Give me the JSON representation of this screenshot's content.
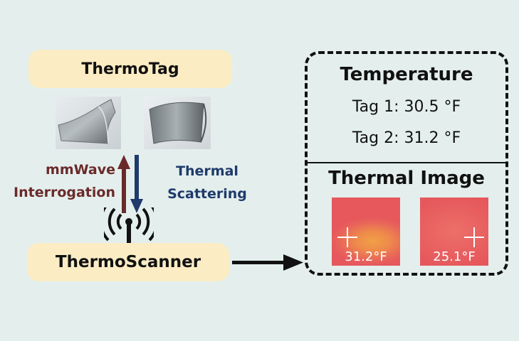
{
  "thermotag": {
    "label": "ThermoTag"
  },
  "thermoscanner": {
    "label": "ThermoScanner"
  },
  "uplink": {
    "line1": "mmWave",
    "line2": "Interrogation",
    "color": "#6b2a2a"
  },
  "downlink": {
    "line1": "Thermal",
    "line2": "Scattering",
    "color": "#1f3a6b"
  },
  "panel": {
    "title": "Temperature",
    "readings": [
      {
        "label": "Tag 1:  30.5 °F"
      },
      {
        "label": "Tag 2:  31.2 °F"
      }
    ],
    "thermal_title": "Thermal Image",
    "thermal_images": [
      {
        "temp": "31.2°F"
      },
      {
        "temp": "25.1°F"
      }
    ]
  },
  "icons": [
    "antenna-icon",
    "arrow-right-icon",
    "arrow-up-icon",
    "arrow-down-icon"
  ]
}
